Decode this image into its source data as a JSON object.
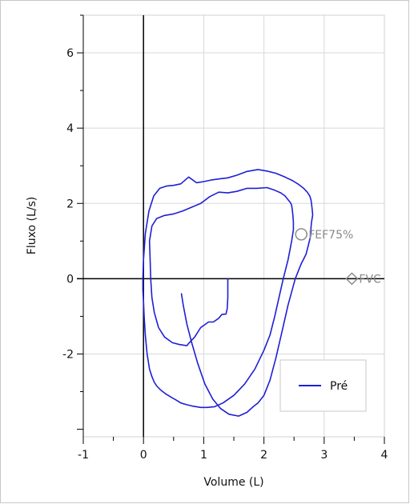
{
  "chart_data": {
    "type": "line",
    "title": "",
    "xlabel": "Volume (L)",
    "ylabel": "Fluxo (L/s)",
    "xlim": [
      -1,
      4
    ],
    "ylim": [
      -4.2,
      7.0
    ],
    "x_ticks": [
      -1,
      0,
      1,
      2,
      3,
      4
    ],
    "y_ticks": [
      -2,
      0,
      2,
      4,
      6
    ],
    "grid": true,
    "legend_position": "bottom-right",
    "colors": {
      "series": "#1f1fd6",
      "axis": "#000000",
      "grid": "#d8d8d8",
      "markers": "#8c8c8c",
      "border": "#c8c8c8"
    },
    "series": [
      {
        "name": "Pré",
        "x": [
          0.63,
          0.66,
          0.72,
          0.8,
          0.9,
          1.02,
          1.15,
          1.28,
          1.42,
          1.58,
          1.72,
          1.82,
          1.9,
          2.0,
          2.1,
          2.2,
          2.3,
          2.4,
          2.52,
          2.62,
          2.7,
          2.74,
          2.77,
          2.78,
          2.78,
          2.79,
          2.8,
          2.81,
          2.8,
          2.79,
          2.78,
          2.76,
          2.72,
          2.66,
          2.58,
          2.48,
          2.35,
          2.2,
          2.05,
          1.9,
          1.72,
          1.55,
          1.4,
          1.25,
          1.12,
          1.0,
          0.88,
          0.75,
          0.62,
          0.5,
          0.38,
          0.27,
          0.17,
          0.09,
          0.03,
          0.0,
          -0.01,
          -0.01,
          0.0,
          0.01,
          0.03,
          0.06,
          0.1,
          0.14,
          0.18,
          0.22,
          0.28,
          0.36,
          0.46,
          0.55,
          0.62,
          0.7,
          0.8,
          0.95,
          1.05,
          1.18,
          1.32,
          1.5,
          1.68,
          1.85,
          2.0,
          2.1,
          2.18,
          2.25,
          2.32,
          2.4,
          2.46,
          2.49,
          2.49,
          2.48,
          2.47,
          2.46,
          2.44,
          2.4,
          2.35,
          2.28,
          2.18,
          2.05,
          1.88,
          1.72,
          1.55,
          1.4,
          1.25,
          1.1,
          0.95,
          0.8,
          0.65,
          0.5,
          0.35,
          0.22,
          0.14,
          0.1,
          0.11,
          0.12,
          0.14,
          0.18,
          0.25,
          0.35,
          0.48,
          0.6,
          0.72,
          0.75,
          0.85,
          0.95,
          1.08,
          1.16,
          1.25,
          1.3,
          1.37,
          1.39,
          1.4,
          1.4
        ],
        "y": [
          -0.4,
          -0.7,
          -1.2,
          -1.7,
          -2.25,
          -2.8,
          -3.2,
          -3.45,
          -3.6,
          -3.65,
          -3.55,
          -3.4,
          -3.3,
          -3.1,
          -2.7,
          -2.1,
          -1.4,
          -0.7,
          0.0,
          0.4,
          0.65,
          0.9,
          1.1,
          1.25,
          1.35,
          1.5,
          1.6,
          1.7,
          1.85,
          2.0,
          2.1,
          2.2,
          2.3,
          2.4,
          2.5,
          2.6,
          2.7,
          2.8,
          2.86,
          2.9,
          2.85,
          2.75,
          2.68,
          2.65,
          2.62,
          2.58,
          2.55,
          2.7,
          2.52,
          2.48,
          2.46,
          2.4,
          2.2,
          1.8,
          1.2,
          0.5,
          0.0,
          -0.3,
          -0.6,
          -1.0,
          -1.5,
          -2.0,
          -2.4,
          -2.6,
          -2.75,
          -2.85,
          -2.95,
          -3.05,
          -3.15,
          -3.23,
          -3.3,
          -3.34,
          -3.38,
          -3.42,
          -3.42,
          -3.4,
          -3.3,
          -3.1,
          -2.8,
          -2.4,
          -1.9,
          -1.5,
          -1.0,
          -0.5,
          0.0,
          0.5,
          1.0,
          1.3,
          1.5,
          1.7,
          1.85,
          1.95,
          2.02,
          2.1,
          2.2,
          2.28,
          2.35,
          2.42,
          2.4,
          2.4,
          2.32,
          2.28,
          2.3,
          2.18,
          2.0,
          1.9,
          1.8,
          1.72,
          1.68,
          1.6,
          1.4,
          1.0,
          0.5,
          0.0,
          -0.5,
          -0.9,
          -1.3,
          -1.55,
          -1.7,
          -1.75,
          -1.78,
          -1.72,
          -1.55,
          -1.3,
          -1.15,
          -1.15,
          -1.05,
          -0.95,
          -0.94,
          -0.8,
          -0.5,
          0.0
        ]
      }
    ],
    "markers": [
      {
        "label": "FEF75%",
        "shape": "circle",
        "x": 2.62,
        "y": 1.18
      },
      {
        "label": "FVC",
        "shape": "diamond",
        "x": 3.46,
        "y": 0.0
      }
    ],
    "legend": [
      {
        "label": "Pré"
      }
    ]
  }
}
